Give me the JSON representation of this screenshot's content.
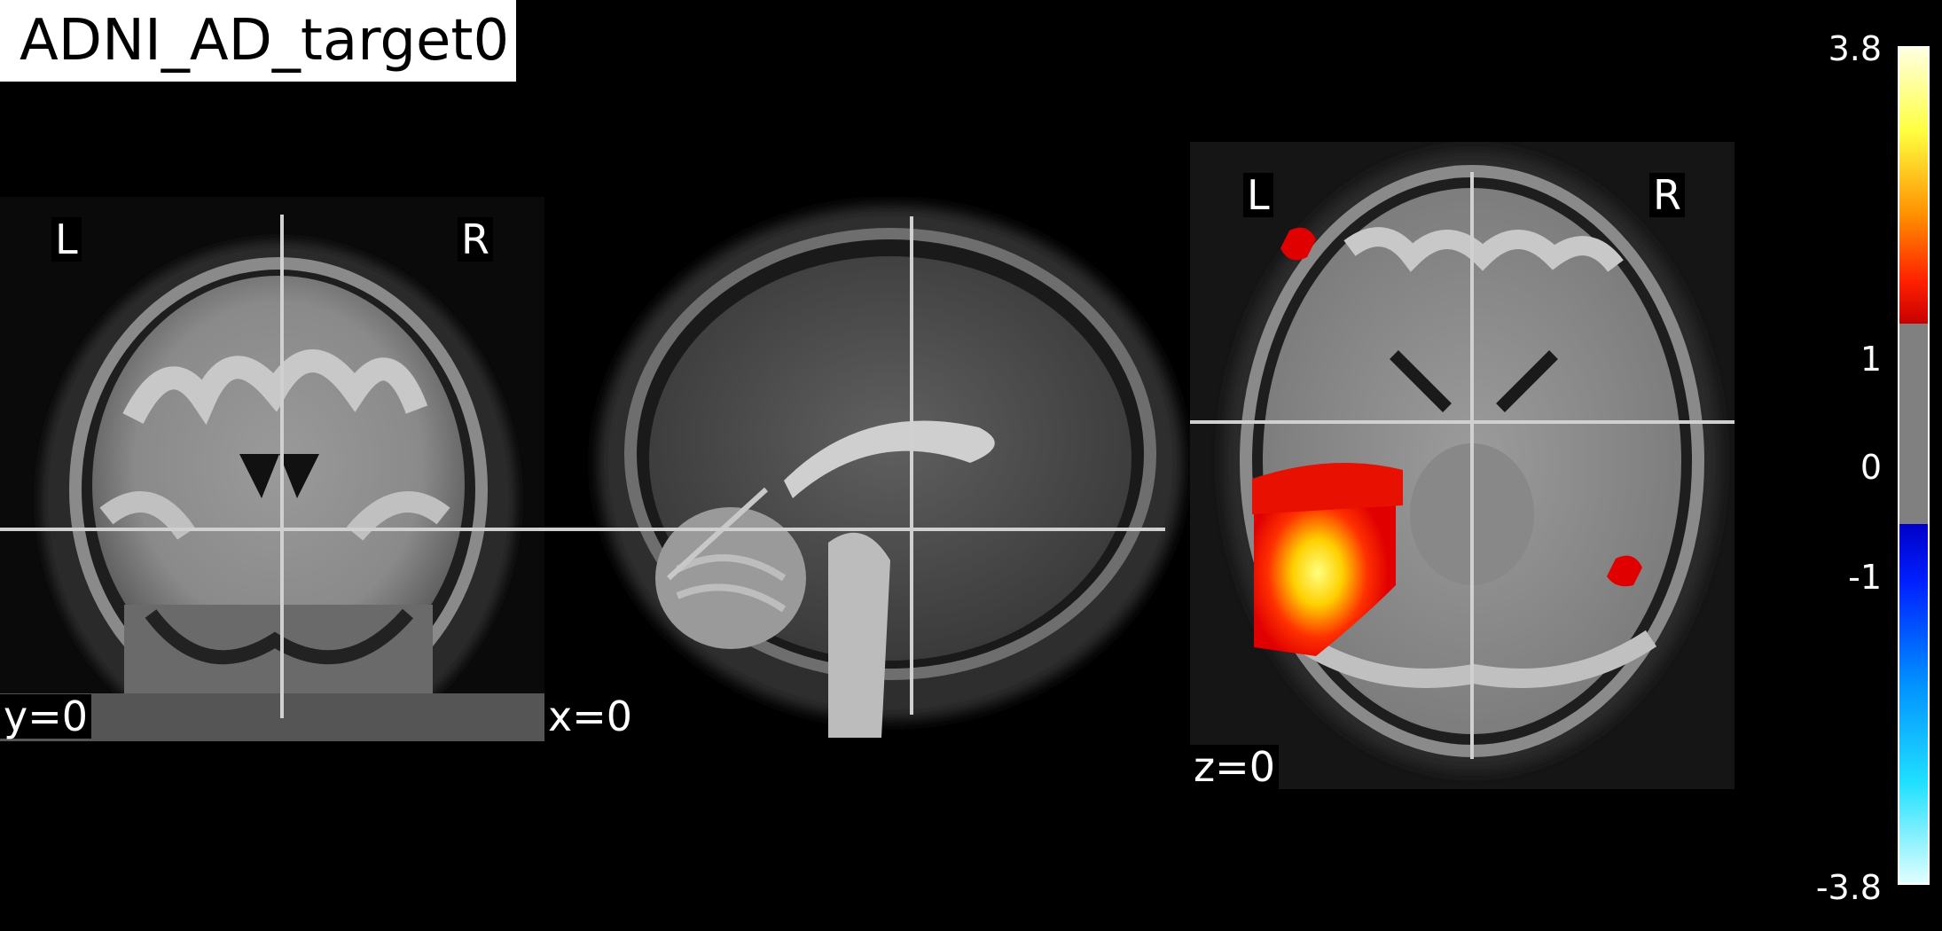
{
  "title": "ADNI_AD_target0",
  "views": {
    "coronal": {
      "coord_label": "y=0",
      "left_label": "L",
      "right_label": "R"
    },
    "sagittal": {
      "coord_label": "x=0"
    },
    "axial": {
      "coord_label": "z=0",
      "left_label": "L",
      "right_label": "R"
    }
  },
  "colorbar": {
    "max_label": "3.8",
    "upper_threshold_label": "1",
    "zero_label": "0",
    "lower_threshold_label": "-1",
    "min_label": "-3.8",
    "colormap": "cold_hot",
    "vmin": -3.8,
    "vmax": 3.8,
    "threshold": 1,
    "colors": {
      "hot_low": "#c80000",
      "hot_mid": "#ff4000",
      "hot_high": "#ffff80",
      "cold_low": "#0000c8",
      "cold_mid": "#0080ff",
      "cold_high": "#e0ffff",
      "neutral": "#808080"
    }
  },
  "icons": [
    "crosshair-icon"
  ]
}
